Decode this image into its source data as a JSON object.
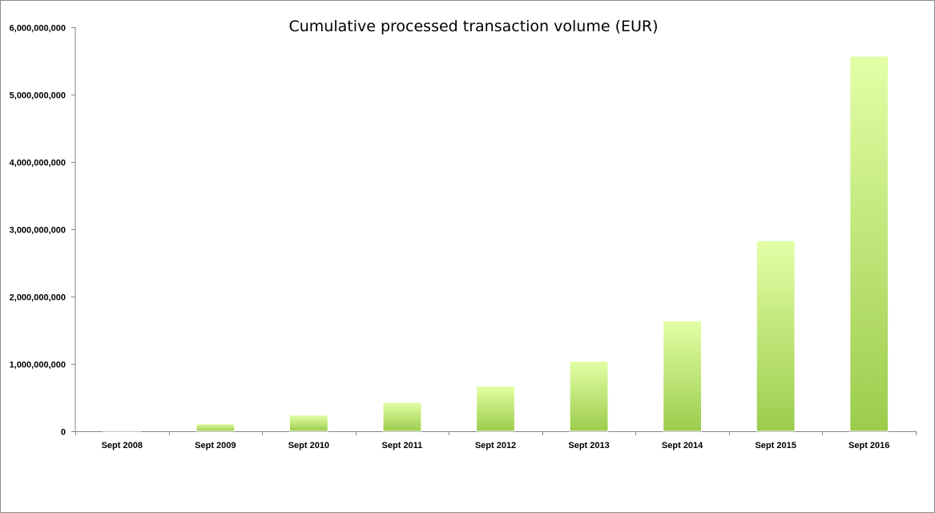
{
  "chart_data": {
    "type": "bar",
    "title": "Cumulative processed transaction volume (EUR)",
    "xlabel": "",
    "ylabel": "",
    "categories": [
      "Sept 2008",
      "Sept 2009",
      "Sept 2010",
      "Sept 2011",
      "Sept 2012",
      "Sept 2013",
      "Sept 2014",
      "Sept 2015",
      "Sept 2016"
    ],
    "values": [
      5000000,
      110000000,
      240000000,
      430000000,
      670000000,
      1040000000,
      1640000000,
      2830000000,
      5570000000
    ],
    "ylim": [
      0,
      6000000000
    ],
    "yticks": [
      0,
      1000000000,
      2000000000,
      3000000000,
      4000000000,
      5000000000,
      6000000000
    ],
    "ytick_labels": [
      "0",
      "1,000,000,000",
      "2,000,000,000",
      "3,000,000,000",
      "4,000,000,000",
      "5,000,000,000",
      "6,000,000,000"
    ],
    "grid": false,
    "legend": "none",
    "colors": {
      "bar_top": "#e2ffa6",
      "bar_bottom": "#9ccc4c",
      "axis": "#868686"
    }
  }
}
